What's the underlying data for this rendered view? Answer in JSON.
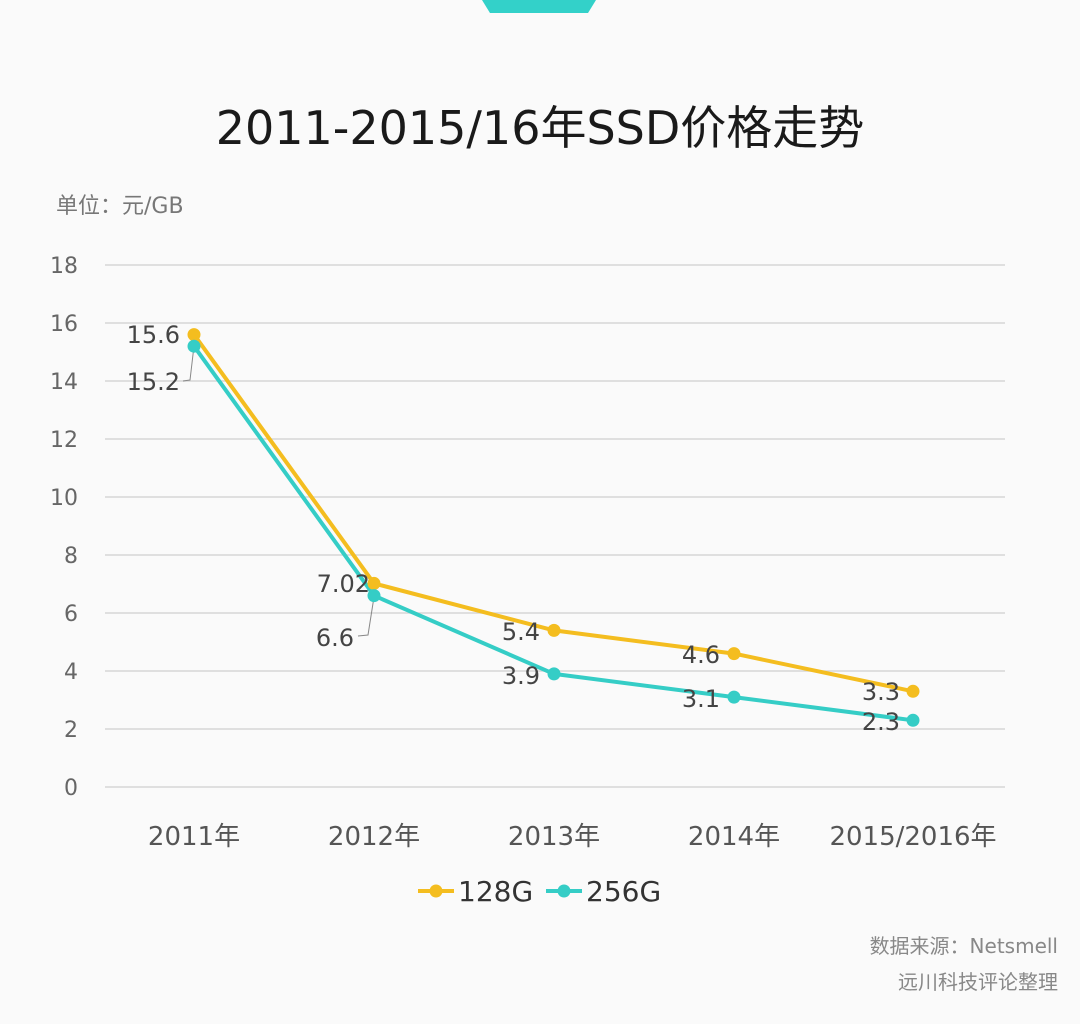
{
  "header": {
    "title": "2011-2015/16年SSD价格走势",
    "unit": "单位：元/GB"
  },
  "source": {
    "line1": "数据来源：Netsmell",
    "line2": "远川科技评论整理"
  },
  "chart_data": {
    "type": "line",
    "title": "2011-2015/16年SSD价格走势",
    "ylabel": "单位：元/GB",
    "categories": [
      "2011年",
      "2012年",
      "2013年",
      "2014年",
      "2015/2016年"
    ],
    "ylim": [
      0,
      18
    ],
    "yticks": [
      0,
      2,
      4,
      6,
      8,
      10,
      12,
      14,
      16,
      18
    ],
    "grid": true,
    "legend": "bottom",
    "series": [
      {
        "name": "128G",
        "color": "#f4bd1f",
        "values": [
          15.6,
          7.02,
          5.4,
          4.6,
          3.3
        ],
        "labels": [
          "15.6",
          "7.02",
          "5.4",
          "4.6",
          "3.3"
        ]
      },
      {
        "name": "256G",
        "color": "#35cdc6",
        "values": [
          15.2,
          6.6,
          3.9,
          3.1,
          2.3
        ],
        "labels": [
          "15.2",
          "6.6",
          "3.9",
          "3.1",
          "2.3"
        ]
      }
    ]
  }
}
